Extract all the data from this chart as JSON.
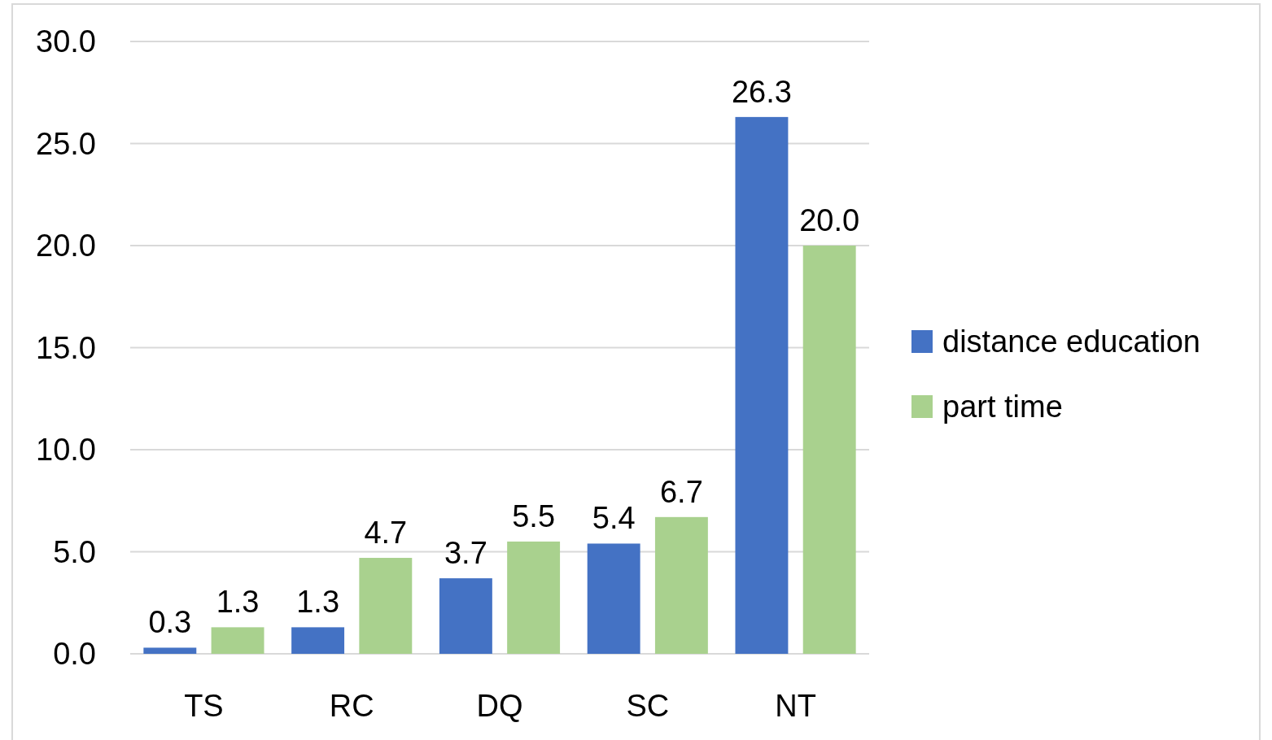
{
  "chart_data": {
    "type": "bar",
    "categories": [
      "TS",
      "RC",
      "DQ",
      "SC",
      "NT"
    ],
    "series": [
      {
        "name": "distance education",
        "color": "#4472c4",
        "values": [
          0.3,
          1.3,
          3.7,
          5.4,
          26.3
        ],
        "value_labels": [
          "0.3",
          "1.3",
          "3.7",
          "5.4",
          "26.3"
        ]
      },
      {
        "name": "part time",
        "color": "#a9d18e",
        "values": [
          1.3,
          4.7,
          5.5,
          6.7,
          20.0
        ],
        "value_labels": [
          "1.3",
          "4.7",
          "5.5",
          "6.7",
          "20.0"
        ]
      }
    ],
    "ylim": [
      0,
      30
    ],
    "yticks": [
      {
        "value": 0,
        "label": "0.0"
      },
      {
        "value": 5,
        "label": "5.0"
      },
      {
        "value": 10,
        "label": "10.0"
      },
      {
        "value": 15,
        "label": "15.0"
      },
      {
        "value": 20,
        "label": "20.0"
      },
      {
        "value": 25,
        "label": "25.0"
      },
      {
        "value": 30,
        "label": "30.0"
      }
    ],
    "grid": "y",
    "legend": "right"
  }
}
